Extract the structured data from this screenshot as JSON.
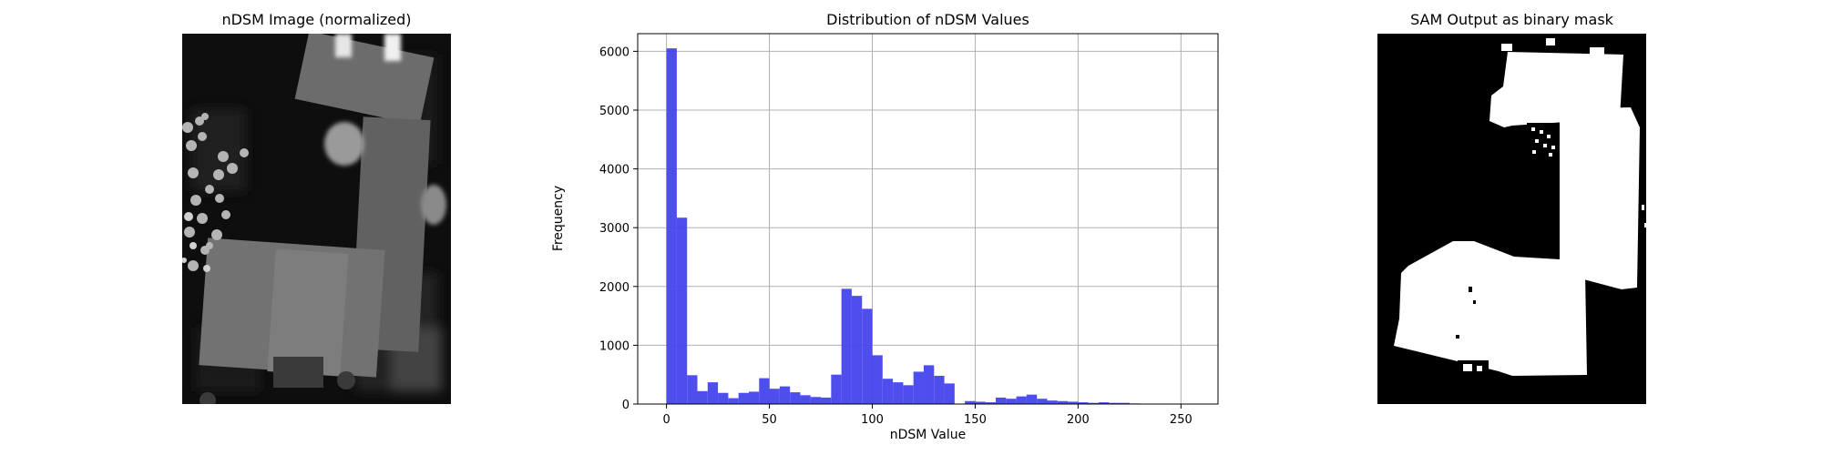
{
  "panels": {
    "left_title": "nDSM Image (normalized)",
    "middle_title": "Distribution of nDSM Values",
    "right_title": "SAM Output as binary mask"
  },
  "chart_data": {
    "type": "bar",
    "title": "Distribution of nDSM Values",
    "xlabel": "nDSM Value",
    "ylabel": "Frequency",
    "xlim": [
      -14,
      268
    ],
    "ylim": [
      0,
      6300
    ],
    "xticks": [
      0,
      50,
      100,
      150,
      200,
      250
    ],
    "yticks": [
      0,
      1000,
      2000,
      3000,
      4000,
      5000,
      6000
    ],
    "grid": true,
    "bar_color": "#4444ee",
    "bin_width": 5,
    "bin_starts": [
      0,
      5,
      10,
      15,
      20,
      25,
      30,
      35,
      40,
      45,
      50,
      55,
      60,
      65,
      70,
      75,
      80,
      85,
      90,
      95,
      100,
      105,
      110,
      115,
      120,
      125,
      130,
      135,
      140,
      145,
      150,
      155,
      160,
      165,
      170,
      175,
      180,
      185,
      190,
      195,
      200,
      205,
      210,
      215,
      220,
      225,
      230,
      235,
      240,
      245,
      250
    ],
    "values": [
      6050,
      3170,
      490,
      220,
      370,
      190,
      100,
      190,
      210,
      440,
      260,
      300,
      200,
      150,
      120,
      110,
      500,
      1960,
      1840,
      1620,
      830,
      430,
      370,
      320,
      550,
      660,
      480,
      350,
      0,
      50,
      40,
      30,
      110,
      90,
      130,
      160,
      90,
      60,
      50,
      40,
      30,
      20,
      30,
      20,
      20,
      10,
      5,
      0,
      0,
      0,
      0
    ]
  }
}
